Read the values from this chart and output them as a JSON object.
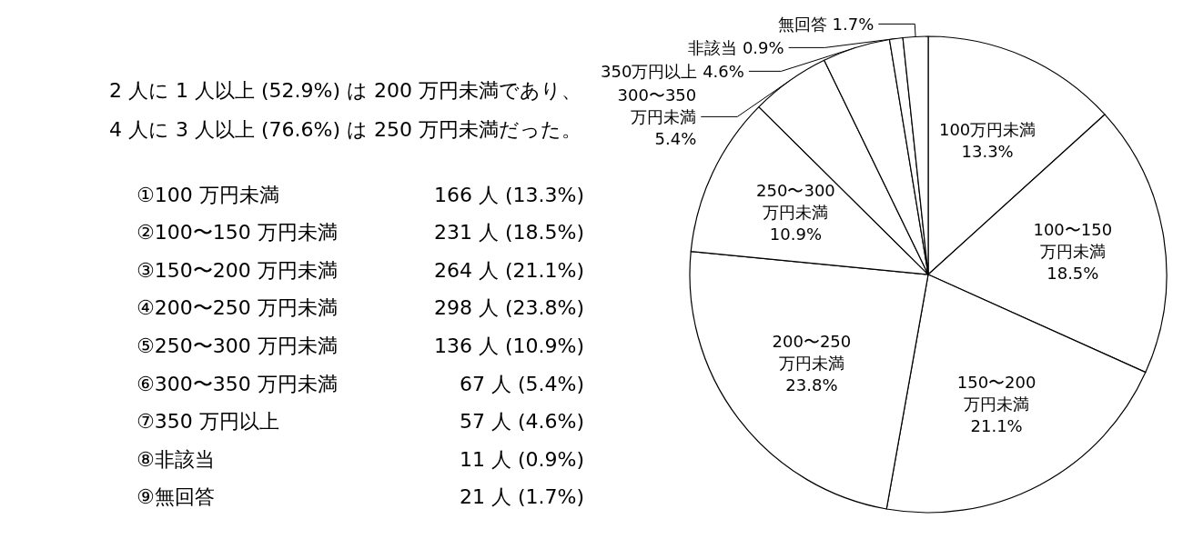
{
  "chart_data": {
    "type": "pie",
    "categories": [
      "100万円未満",
      "100〜150\n万円未満",
      "150〜200\n万円未満",
      "200〜250\n万円未満",
      "250〜300\n万円未満",
      "300〜350\n万円未満",
      "350万円以上",
      "非該当",
      "無回答"
    ],
    "values": [
      13.3,
      18.5,
      21.1,
      23.8,
      10.9,
      5.4,
      4.6,
      0.9,
      1.7
    ],
    "colors": [
      "#ffffff",
      "#ffffff",
      "#ffffff",
      "#ffffff",
      "#ffffff",
      "#ffffff",
      "#ffffff",
      "#ffffff",
      "#ffffff"
    ],
    "value_labels": [
      "13.3%",
      "18.5%",
      "21.1%",
      "23.8%",
      "10.9%",
      "5.4%",
      "4.6%",
      "0.9%",
      "1.7%"
    ],
    "annotations": [
      "2 人に 1 人以上 (52.9%) は 200 万円未満であり、",
      "4 人に 3 人以上 (76.6%) は 250 万円未満だった。",
      "①100 万円未満\t166 人 (13.3%)",
      "②100〜150 万円未満\t231 人 (18.5%)",
      "③150〜200 万円未満\t264 人 (21.1%)",
      "④200〜250 万円未満\t298 人 (23.8%)",
      "⑤250〜300 万円未満\t136 人 (10.9%)",
      "⑥300〜350 万円未満\t67 人 (5.4%)",
      "⑦350 万円以上\t57 人 (4.6%)",
      "⑧非該当\t11 人 (0.9%)",
      "⑨無回答\t21 人 (1.7%)"
    ]
  }
}
